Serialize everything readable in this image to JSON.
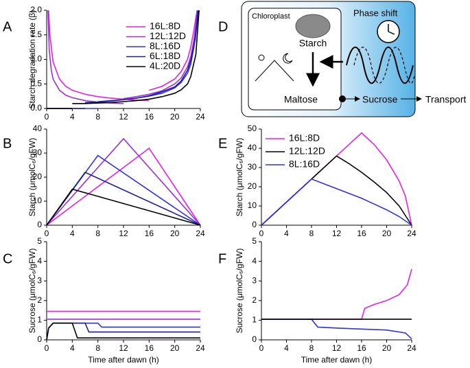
{
  "panel_labels": [
    "A",
    "B",
    "C",
    "D",
    "E",
    "F"
  ],
  "diagram": {
    "chloroplast": "Chloroplast",
    "starch": "Starch",
    "phase_shift": "Phase shift",
    "maltose": "Maltose",
    "sucrose": "Sucrose",
    "transport": "Transport"
  },
  "chart_data": [
    {
      "type": "line",
      "y_label": "Starch degradation rate (β)",
      "xlim": [
        0,
        24
      ],
      "xticks": [
        0,
        4,
        8,
        12,
        16,
        20,
        24
      ],
      "ylim": [
        0,
        2
      ],
      "yticks": [
        {
          "value": 0,
          "label": "0.0"
        },
        0.5,
        {
          "value": 1,
          "label": "1.0"
        },
        1.5,
        {
          "value": 2,
          "label": "2.0"
        }
      ],
      "legend": "upper right",
      "series": [
        {
          "name": "16L:8D",
          "color": "#e61ee6",
          "x": [
            0.3,
            0.5,
            1,
            2,
            3,
            4,
            6,
            8,
            10,
            12,
            14,
            16,
            16,
            16,
            18,
            20,
            21,
            22,
            22.5,
            23,
            23.3,
            23.5
          ],
          "values": [
            2.0,
            1.5,
            0.95,
            0.6,
            0.45,
            0.37,
            0.29,
            0.24,
            0.21,
            0.19,
            0.17,
            0.16,
            null,
            0.37,
            0.45,
            0.6,
            0.75,
            1.0,
            1.25,
            1.6,
            1.85,
            2.0
          ]
        },
        {
          "name": "12L:12D",
          "color": "#9b30d9",
          "x": [
            0.2,
            0.4,
            0.7,
            1,
            2,
            3,
            4,
            6,
            8,
            10,
            12,
            12,
            12,
            14,
            16,
            18,
            20,
            21,
            22,
            22.5,
            23,
            23.3,
            23.5
          ],
          "values": [
            2.0,
            1.2,
            0.8,
            0.6,
            0.37,
            0.27,
            0.22,
            0.16,
            0.13,
            0.11,
            0.1,
            null,
            0.2,
            0.24,
            0.29,
            0.36,
            0.5,
            0.62,
            0.85,
            1.05,
            1.4,
            1.7,
            2.0
          ]
        },
        {
          "name": "8L:16D",
          "color": "#3030e0",
          "x": [
            0,
            8,
            8,
            8,
            10,
            12,
            14,
            16,
            18,
            20,
            21,
            22,
            22.5,
            23,
            23.4,
            23.6
          ],
          "values": [
            0,
            0,
            null,
            0.14,
            0.16,
            0.18,
            0.21,
            0.25,
            0.31,
            0.42,
            0.53,
            0.72,
            0.9,
            1.25,
            1.7,
            2.0
          ]
        },
        {
          "name": "6L:18D",
          "color": "#1c1c9c",
          "x": [
            0,
            6,
            6,
            6,
            8,
            10,
            12,
            14,
            16,
            18,
            20,
            21,
            22,
            22.5,
            23.2,
            23.7
          ],
          "values": [
            0,
            0,
            null,
            0.12,
            0.13,
            0.15,
            0.18,
            0.21,
            0.26,
            0.34,
            0.44,
            0.56,
            0.78,
            0.98,
            1.4,
            2.0
          ]
        },
        {
          "name": "4L:20D",
          "color": "#000000",
          "x": [
            0,
            4,
            4,
            4,
            6,
            8,
            10,
            12,
            14,
            16,
            18,
            20,
            21,
            22,
            22.5,
            23.3,
            23.8
          ],
          "values": [
            0,
            0,
            null,
            0.1,
            0.1,
            0.11,
            0.12,
            0.14,
            0.16,
            0.19,
            0.24,
            0.31,
            0.38,
            0.5,
            0.65,
            1.1,
            2.0
          ]
        }
      ]
    },
    {
      "type": "line",
      "y_label": "Starch (μmolC₆/gFW)",
      "xlim": [
        0,
        24
      ],
      "xticks": [
        0,
        4,
        8,
        12,
        16,
        20,
        24
      ],
      "ylim": [
        0,
        40
      ],
      "yticks": [
        0,
        10,
        20,
        30,
        40
      ],
      "series": [
        {
          "color": "#e61ee6",
          "x": [
            0,
            16,
            24
          ],
          "values": [
            0,
            32,
            0
          ]
        },
        {
          "color": "#9b30d9",
          "x": [
            0,
            12,
            24
          ],
          "values": [
            0,
            36,
            0
          ]
        },
        {
          "color": "#3030e0",
          "x": [
            0,
            8,
            24
          ],
          "values": [
            0,
            29,
            0
          ]
        },
        {
          "color": "#1c1c9c",
          "x": [
            0,
            6,
            24
          ],
          "values": [
            0,
            22,
            0
          ]
        },
        {
          "color": "#000000",
          "x": [
            0,
            4,
            24
          ],
          "values": [
            0,
            15,
            0
          ]
        }
      ]
    },
    {
      "type": "line",
      "y_label": "Sucrose (μmolC₆/gFW)",
      "x_label": "Time after dawn (h)",
      "xlim": [
        0,
        24
      ],
      "xticks": [
        0,
        4,
        8,
        12,
        16,
        20,
        24
      ],
      "ylim": [
        0,
        5
      ],
      "yticks": [
        0,
        1,
        2,
        3,
        4,
        5
      ],
      "series": [
        {
          "color": "#e61ee6",
          "x": [
            0,
            24
          ],
          "values": [
            1.45,
            1.45
          ]
        },
        {
          "color": "#9b30d9",
          "x": [
            0,
            24
          ],
          "values": [
            1.05,
            1.05
          ]
        },
        {
          "color": "#3030e0",
          "x": [
            0,
            0.3,
            1,
            8,
            8.6,
            24
          ],
          "values": [
            0,
            0.6,
            0.85,
            0.85,
            0.65,
            0.65
          ]
        },
        {
          "color": "#1c1c9c",
          "x": [
            0,
            0.3,
            1,
            6,
            6.6,
            24
          ],
          "values": [
            0,
            0.6,
            0.85,
            0.85,
            0.4,
            0.4
          ]
        },
        {
          "color": "#000000",
          "x": [
            0,
            0.3,
            1,
            4,
            4.8,
            24
          ],
          "values": [
            0,
            0.6,
            0.85,
            0.85,
            0.1,
            0.1
          ]
        }
      ]
    },
    {
      "type": "line",
      "y_label": "Starch (μmolC₆/gFW)",
      "xlim": [
        0,
        24
      ],
      "xticks": [
        0,
        4,
        8,
        12,
        16,
        20,
        24
      ],
      "ylim": [
        0,
        50
      ],
      "yticks": [
        0,
        10,
        20,
        30,
        40,
        50
      ],
      "legend": "upper left",
      "series": [
        {
          "name": "16L:8D",
          "color": "#e61ee6",
          "x": [
            0,
            16,
            18,
            20,
            22,
            23,
            24
          ],
          "values": [
            0,
            48,
            42,
            34,
            23,
            15,
            0
          ]
        },
        {
          "name": "12L:12D",
          "color": "#000000",
          "x": [
            0,
            12,
            14,
            16,
            18,
            20,
            22,
            24
          ],
          "values": [
            0,
            36,
            32,
            27.5,
            22.5,
            17,
            10,
            0
          ]
        },
        {
          "name": "8L:16D",
          "color": "#3030e0",
          "x": [
            0,
            8,
            10,
            12,
            14,
            16,
            18,
            20,
            22,
            24
          ],
          "values": [
            0,
            24,
            21.5,
            19,
            16.5,
            14,
            11,
            8,
            4.5,
            0
          ]
        }
      ]
    },
    {
      "type": "line",
      "y_label": "Sucrose (μmolC₆/gFW)",
      "x_label": "Time after dawn (h)",
      "xlim": [
        0,
        24
      ],
      "xticks": [
        0,
        4,
        8,
        12,
        16,
        20,
        24
      ],
      "ylim": [
        0,
        5
      ],
      "yticks": [
        0,
        1,
        2,
        3,
        4,
        5
      ],
      "series": [
        {
          "color": "#e61ee6",
          "x": [
            0,
            16,
            16.5,
            18,
            20,
            22,
            23.3,
            24
          ],
          "values": [
            1.05,
            1.05,
            1.6,
            1.8,
            2.0,
            2.3,
            2.8,
            3.6
          ]
        },
        {
          "color": "#3030e0",
          "x": [
            0,
            8,
            9,
            12,
            16,
            20,
            23,
            24
          ],
          "values": [
            1.05,
            1.05,
            0.65,
            0.6,
            0.55,
            0.5,
            0.35,
            0.05
          ]
        },
        {
          "color": "#000000",
          "x": [
            0,
            24
          ],
          "values": [
            1.05,
            1.05
          ]
        }
      ]
    }
  ]
}
